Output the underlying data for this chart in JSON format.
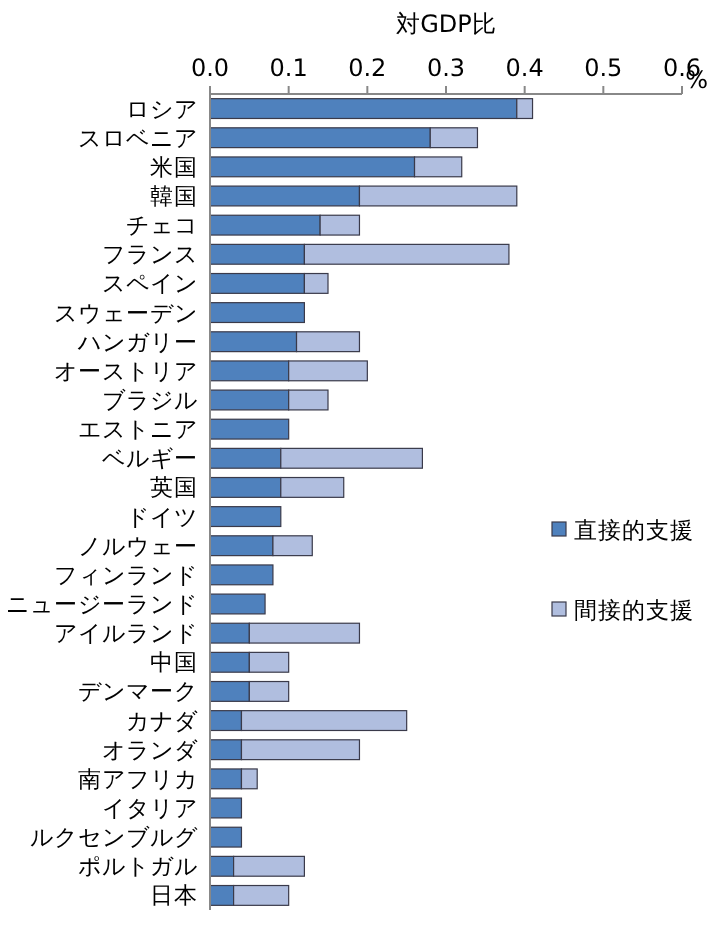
{
  "chart_data": {
    "type": "bar",
    "orientation": "horizontal",
    "stacked": true,
    "xlabel": "対GDP比",
    "annotations": [
      "%"
    ],
    "categories": [
      "ロシア",
      "スロベニア",
      "米国",
      "韓国",
      "チェコ",
      "フランス",
      "スペイン",
      "スウェーデン",
      "ハンガリー",
      "オーストリア",
      "ブラジル",
      "エストニア",
      "ベルギー",
      "英国",
      "ドイツ",
      "ノルウェー",
      "フィンランド",
      "ニュージーランド",
      "アイルランド",
      "中国",
      "デンマーク",
      "カナダ",
      "オランダ",
      "南アフリカ",
      "イタリア",
      "ルクセンブルグ",
      "ポルトガル",
      "日本"
    ],
    "series": [
      {
        "name": "直接的支援",
        "color": "#4f81bd",
        "values": [
          0.39,
          0.28,
          0.26,
          0.19,
          0.14,
          0.12,
          0.12,
          0.12,
          0.11,
          0.1,
          0.1,
          0.1,
          0.09,
          0.09,
          0.09,
          0.08,
          0.08,
          0.07,
          0.05,
          0.05,
          0.05,
          0.04,
          0.04,
          0.04,
          0.04,
          0.04,
          0.03,
          0.03
        ]
      },
      {
        "name": "間接的支援",
        "color": "#b0bedf",
        "values": [
          0.02,
          0.06,
          0.06,
          0.2,
          0.05,
          0.26,
          0.03,
          0,
          0.08,
          0.1,
          0.05,
          0,
          0.18,
          0.08,
          0,
          0.05,
          0,
          0,
          0.14,
          0.05,
          0.05,
          0.21,
          0.15,
          0.02,
          0,
          0,
          0.09,
          0.07
        ]
      }
    ],
    "xlim": [
      0,
      0.6
    ],
    "xticks": [
      {
        "value": 0,
        "label": "0.0"
      },
      0.1,
      0.2,
      0.3,
      0.4,
      0.5,
      0.6
    ],
    "grid": false,
    "legend": "right"
  }
}
